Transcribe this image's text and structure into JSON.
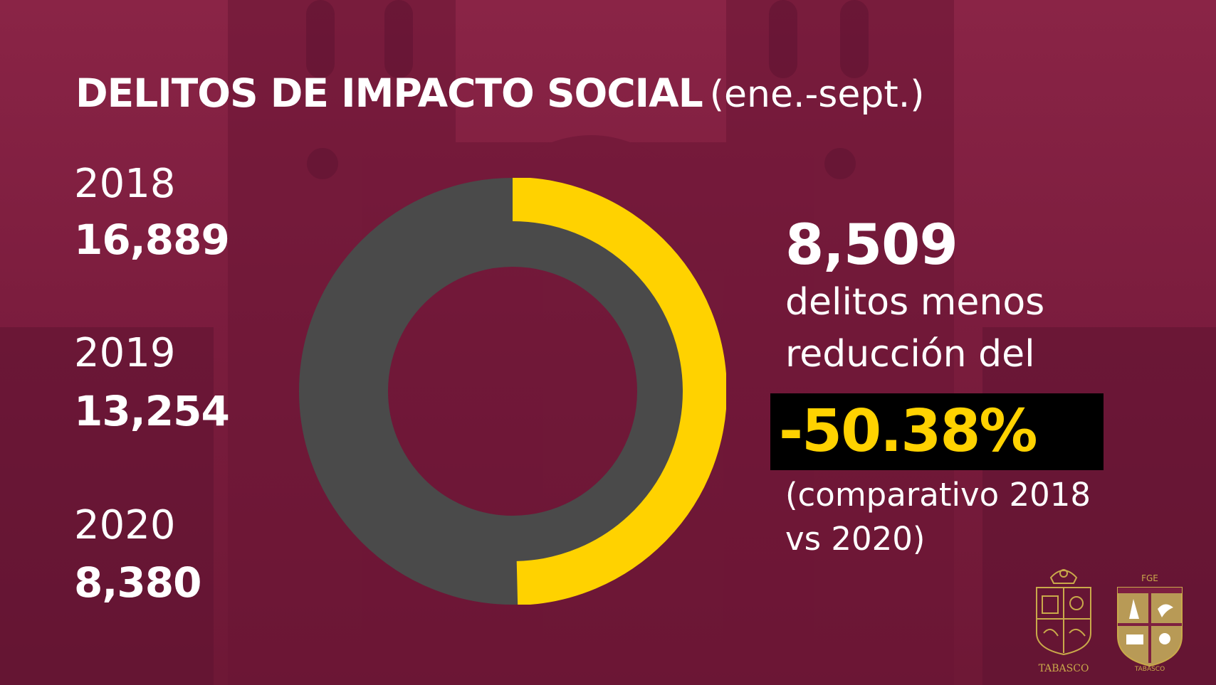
{
  "title": {
    "main": "DELITOS DE IMPACTO SOCIAL",
    "period": "(ene.-sept.)"
  },
  "years": [
    {
      "year": "2018",
      "count": "16,889"
    },
    {
      "year": "2019",
      "count": "13,254"
    },
    {
      "year": "2020",
      "count": "8,380"
    }
  ],
  "summary": {
    "difference": "8,509",
    "line1": "delitos menos",
    "line2": "reducción del",
    "percent": "-50.38%",
    "comparison_line1": "(comparativo 2018",
    "comparison_line2": "vs 2020)"
  },
  "logos": {
    "left_caption": "TABASCO",
    "right_top": "FGE",
    "right_caption": "TABASCO"
  },
  "colors": {
    "background": "#7e1f40",
    "ring": "#4a4a4a",
    "highlight": "#ffd200",
    "text": "#ffffff"
  },
  "chart_data": {
    "type": "pie",
    "categories": [
      "2018",
      "2020"
    ],
    "values": [
      16889,
      8380
    ],
    "ring_fraction": 0.4962,
    "title": "DELITOS DE IMPACTO SOCIAL (ene.-sept.)"
  }
}
